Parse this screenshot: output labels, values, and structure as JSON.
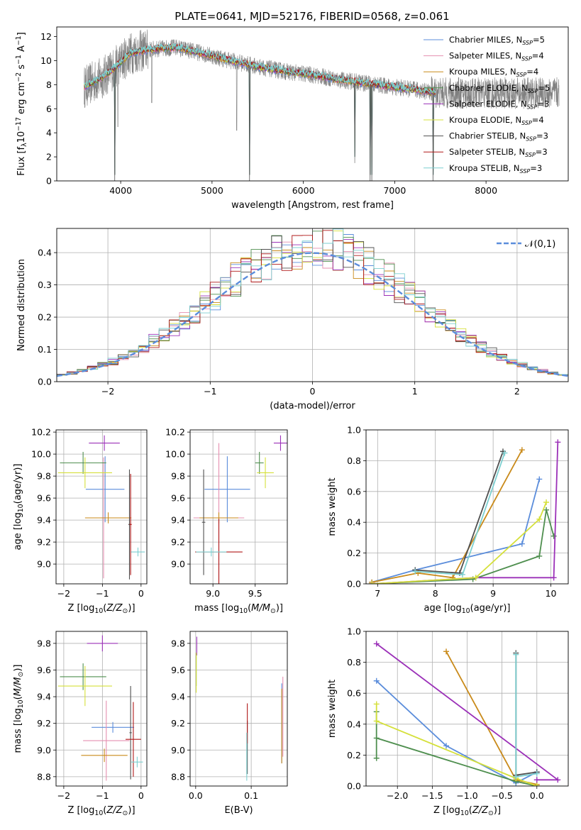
{
  "figure": {
    "title": "PLATE=0641, MJD=52176, FIBERID=0568, z=0.061"
  },
  "models": [
    {
      "name": "Chabrier MILES",
      "nssp": "5",
      "color": "#5b8ddb"
    },
    {
      "name": "Salpeter MILES",
      "nssp": "4",
      "color": "#e58fb0"
    },
    {
      "name": "Kroupa MILES",
      "nssp": "4",
      "color": "#c98a1a"
    },
    {
      "name": "Chabrier ELODIE",
      "nssp": "5",
      "color": "#4f8f4f"
    },
    {
      "name": "Salpeter ELODIE",
      "nssp": "3",
      "color": "#9b30b8"
    },
    {
      "name": "Kroupa ELODIE",
      "nssp": "4",
      "color": "#d5e03a"
    },
    {
      "name": "Chabrier STELIB",
      "nssp": "3",
      "color": "#505050"
    },
    {
      "name": "Salpeter STELIB",
      "nssp": "3",
      "color": "#b01818"
    },
    {
      "name": "Kroupa STELIB",
      "nssp": "3",
      "color": "#7ccfd0"
    }
  ],
  "chart_data": [
    {
      "id": "spectrum",
      "type": "line",
      "xlabel": "wavelength [Angstrom, rest frame]",
      "ylabel": "Flux [f$_\\lambda$10$^{-17}$ erg cm$^{-2}$ s$^{-1}$ A$^{-1}$]",
      "xlim": [
        3300,
        8900
      ],
      "ylim": [
        0,
        12.8
      ],
      "xticks": [
        4000,
        5000,
        6000,
        7000,
        8000
      ],
      "yticks": [
        0,
        2,
        4,
        6,
        8,
        10,
        12
      ],
      "legend_position": "top-right",
      "data_color": "#808080",
      "model_color": "#7ccfd0",
      "continuum": [
        [
          3600,
          7.8
        ],
        [
          3800,
          8.6
        ],
        [
          3950,
          9.5
        ],
        [
          4100,
          10.6
        ],
        [
          4300,
          10.9
        ],
        [
          4600,
          11.1
        ],
        [
          4900,
          10.6
        ],
        [
          5200,
          10.0
        ],
        [
          5500,
          9.5
        ],
        [
          5800,
          9.1
        ],
        [
          6100,
          8.8
        ],
        [
          6400,
          8.4
        ],
        [
          6700,
          8.1
        ],
        [
          7000,
          7.8
        ],
        [
          7300,
          7.5
        ],
        [
          7500,
          7.3
        ]
      ],
      "data_range": [
        3600,
        8800
      ],
      "model_range": [
        3600,
        7450
      ],
      "dips": [
        [
          3934,
          0
        ],
        [
          3969,
          4.5
        ],
        [
          4340,
          6.5
        ],
        [
          5270,
          4.2
        ],
        [
          5410,
          0
        ],
        [
          6563,
          1.5
        ],
        [
          6730,
          0
        ],
        [
          6750,
          0
        ],
        [
          7420,
          0
        ]
      ],
      "noise": 1.2
    },
    {
      "id": "residuals",
      "type": "line",
      "xlabel": "(data-model)/error",
      "ylabel": "Normed distribution",
      "xlim": [
        -2.5,
        2.5
      ],
      "ylim": [
        0,
        0.475
      ],
      "xticks": [
        -2,
        -1,
        0,
        1,
        2
      ],
      "yticks": [
        0.0,
        0.1,
        0.2,
        0.3,
        0.4
      ],
      "xticklabels": [
        "−2",
        "−1",
        "0",
        "1",
        "2"
      ],
      "yticklabels": [
        "0.0",
        "0.1",
        "0.2",
        "0.3",
        "0.4"
      ],
      "grid": true,
      "legend_label": "$\\mathcal{N}(0,1)$",
      "legend_position": "top-right",
      "bins": 50,
      "bin_range": [
        -2.5,
        2.5
      ]
    },
    {
      "id": "age-vs-Z",
      "type": "scatter",
      "xlabel": "Z [log$_{10}$($Z/Z_\\odot$)]",
      "ylabel": "age  [log$_{10}$($age/yr$)]",
      "xlim": [
        -2.2,
        0.15
      ],
      "ylim": [
        8.82,
        10.22
      ],
      "xticks": [
        -2,
        -1,
        0
      ],
      "yticks": [
        9.0,
        9.2,
        9.4,
        9.6,
        9.8,
        10.0,
        10.2
      ],
      "xticklabels": [
        "−2",
        "−1",
        "0"
      ],
      "yticklabels": [
        "9.0",
        "9.2",
        "9.4",
        "9.6",
        "9.8",
        "10.0",
        "10.2"
      ],
      "grid": true,
      "points": [
        {
          "model": 0,
          "x": -0.93,
          "y": 9.68,
          "xerr": 0.5,
          "yerr": 0.3
        },
        {
          "model": 1,
          "x": -0.97,
          "y": 9.42,
          "xerr": 0.05,
          "yerr": 0.55
        },
        {
          "model": 2,
          "x": -0.85,
          "y": 9.42,
          "xerr": 0.6,
          "yerr": 0.05
        },
        {
          "model": 3,
          "x": -1.5,
          "y": 9.92,
          "xerr": 0.6,
          "yerr": 0.1
        },
        {
          "model": 4,
          "x": -0.95,
          "y": 10.1,
          "xerr": 0.4,
          "yerr": 0.07
        },
        {
          "model": 5,
          "x": -1.45,
          "y": 9.83,
          "xerr": 0.7,
          "yerr": 0.14
        },
        {
          "model": 6,
          "x": -0.3,
          "y": 9.36,
          "xerr": 0.03,
          "yerr": 0.5
        },
        {
          "model": 7,
          "x": -0.27,
          "y": 9.36,
          "xerr": 0.03,
          "yerr": 0.46
        },
        {
          "model": 8,
          "x": -0.08,
          "y": 9.11,
          "xerr": 0.18,
          "yerr": 0.04
        }
      ]
    },
    {
      "id": "age-vs-mass",
      "type": "scatter",
      "xlabel": "mass [log$_{10}$($M/M_\\odot$)]",
      "xlim": [
        8.73,
        9.88
      ],
      "ylim": [
        8.82,
        10.22
      ],
      "xticks": [
        9.0,
        9.5
      ],
      "yticks": [
        9.0,
        9.2,
        9.4,
        9.6,
        9.8,
        10.0,
        10.2
      ],
      "xticklabels": [
        "9.0",
        "9.5"
      ],
      "yticklabels": [
        "9.0",
        "9.2",
        "9.4",
        "9.6",
        "9.8",
        "10.0",
        "10.2"
      ],
      "grid": true,
      "points": [
        {
          "model": 0,
          "x": 9.17,
          "y": 9.68,
          "xerr": 0.27,
          "yerr": 0.3
        },
        {
          "model": 1,
          "x": 9.07,
          "y": 9.42,
          "xerr": 0.3,
          "yerr": 0.68
        },
        {
          "model": 2,
          "x": 9.07,
          "y": 9.42,
          "xerr": 0.23,
          "yerr": 0.05
        },
        {
          "model": 3,
          "x": 9.55,
          "y": 9.92,
          "xerr": 0.05,
          "yerr": 0.1
        },
        {
          "model": 4,
          "x": 9.8,
          "y": 10.1,
          "xerr": 0.08,
          "yerr": 0.07
        },
        {
          "model": 5,
          "x": 9.62,
          "y": 9.83,
          "xerr": 0.1,
          "yerr": 0.14
        },
        {
          "model": 6,
          "x": 8.89,
          "y": 9.38,
          "xerr": 0.02,
          "yerr": 0.48
        },
        {
          "model": 7,
          "x": 9.07,
          "y": 9.11,
          "xerr": 0.28,
          "yerr": 0.3
        },
        {
          "model": 8,
          "x": 8.98,
          "y": 9.11,
          "xerr": 0.18,
          "yerr": 0.04
        }
      ]
    },
    {
      "id": "mass-weight-vs-age",
      "type": "line",
      "xlabel": "age  [log$_{10}$($age/yr$)]",
      "ylabel": "mass weight",
      "xlim": [
        6.8,
        10.3
      ],
      "ylim": [
        0,
        1.0
      ],
      "xticks": [
        7,
        8,
        9,
        10
      ],
      "yticks": [
        0.0,
        0.2,
        0.4,
        0.6,
        0.8,
        1.0
      ],
      "xticklabels": [
        "7",
        "8",
        "9",
        "10"
      ],
      "yticklabels": [
        "0.0",
        "0.2",
        "0.4",
        "0.6",
        "0.8",
        "1.0"
      ],
      "grid": true,
      "series": [
        {
          "model": 0,
          "x": [
            6.9,
            7.65,
            9.5,
            9.8
          ],
          "y": [
            0.01,
            0.09,
            0.26,
            0.68
          ]
        },
        {
          "model": 2,
          "x": [
            6.9,
            7.7,
            8.3,
            9.5
          ],
          "y": [
            0.01,
            0.07,
            0.04,
            0.87
          ]
        },
        {
          "model": 3,
          "x": [
            6.9,
            8.65,
            9.8,
            9.92,
            10.05
          ],
          "y": [
            0.0,
            0.03,
            0.18,
            0.48,
            0.31
          ]
        },
        {
          "model": 4,
          "x": [
            6.9,
            8.7,
            10.05,
            10.12
          ],
          "y": [
            0.0,
            0.04,
            0.04,
            0.92
          ]
        },
        {
          "model": 5,
          "x": [
            6.9,
            8.7,
            9.8,
            9.92
          ],
          "y": [
            0.0,
            0.04,
            0.42,
            0.53
          ]
        },
        {
          "model": 6,
          "x": [
            7.65,
            8.42,
            9.17
          ],
          "y": [
            0.09,
            0.07,
            0.86
          ]
        },
        {
          "model": 8,
          "x": [
            7.65,
            8.47,
            9.2
          ],
          "y": [
            0.08,
            0.06,
            0.85
          ]
        }
      ]
    },
    {
      "id": "mass-vs-Z",
      "type": "scatter",
      "xlabel": "Z [log$_{10}$($Z/Z_\\odot$)]",
      "ylabel": "mass [log$_{10}$($M/M_\\odot$)]",
      "xlim": [
        -2.2,
        0.15
      ],
      "ylim": [
        8.73,
        9.89
      ],
      "xticks": [
        -2,
        -1,
        0
      ],
      "yticks": [
        8.8,
        9.0,
        9.2,
        9.4,
        9.6,
        9.8
      ],
      "xticklabels": [
        "−2",
        "−1",
        "0"
      ],
      "yticklabels": [
        "8.8",
        "9.0",
        "9.2",
        "9.4",
        "9.6",
        "9.8"
      ],
      "grid": true,
      "points": [
        {
          "model": 0,
          "x": -0.73,
          "y": 9.17,
          "xerr": 0.55,
          "yerr": 0.04
        },
        {
          "model": 1,
          "x": -0.9,
          "y": 9.07,
          "xerr": 0.6,
          "yerr": 0.3
        },
        {
          "model": 2,
          "x": -0.95,
          "y": 8.96,
          "xerr": 0.6,
          "yerr": 0.05
        },
        {
          "model": 3,
          "x": -1.5,
          "y": 9.55,
          "xerr": 0.6,
          "yerr": 0.1
        },
        {
          "model": 4,
          "x": -1.0,
          "y": 9.8,
          "xerr": 0.4,
          "yerr": 0.06
        },
        {
          "model": 5,
          "x": -1.45,
          "y": 9.48,
          "xerr": 0.7,
          "yerr": 0.15
        },
        {
          "model": 6,
          "x": -0.27,
          "y": 9.13,
          "xerr": 0.03,
          "yerr": 0.35
        },
        {
          "model": 7,
          "x": -0.2,
          "y": 9.08,
          "xerr": 0.2,
          "yerr": 0.28
        },
        {
          "model": 8,
          "x": -0.1,
          "y": 8.91,
          "xerr": 0.15,
          "yerr": 0.04
        }
      ]
    },
    {
      "id": "mass-vs-EBV",
      "type": "scatter",
      "xlabel": "E(B-V)",
      "xlim": [
        -0.01,
        0.165
      ],
      "ylim": [
        8.73,
        9.89
      ],
      "xticks": [
        0.0,
        0.1
      ],
      "yticks": [
        8.8,
        9.0,
        9.2,
        9.4,
        9.6,
        9.8
      ],
      "xticklabels": [
        "0.0",
        "0.1"
      ],
      "yticklabels": [
        "8.8",
        "9.0",
        "9.2",
        "9.4",
        "9.6",
        "9.8"
      ],
      "grid": true,
      "points": [
        {
          "model": 0,
          "x": 0.155,
          "y": 9.2,
          "xerr": 0,
          "yerr": 0.3
        },
        {
          "model": 1,
          "x": 0.157,
          "y": 9.25,
          "xerr": 0,
          "yerr": 0.3
        },
        {
          "model": 2,
          "x": 0.155,
          "y": 9.18,
          "xerr": 0,
          "yerr": 0.28
        },
        {
          "model": 3,
          "x": 0.001,
          "y": 9.6,
          "xerr": 0,
          "yerr": 0.12
        },
        {
          "model": 4,
          "x": 0.002,
          "y": 9.78,
          "xerr": 0,
          "yerr": 0.07
        },
        {
          "model": 5,
          "x": 0.001,
          "y": 9.58,
          "xerr": 0,
          "yerr": 0.15
        },
        {
          "model": 6,
          "x": 0.093,
          "y": 9.02,
          "xerr": 0,
          "yerr": 0.2
        },
        {
          "model": 7,
          "x": 0.093,
          "y": 9.2,
          "xerr": 0,
          "yerr": 0.15
        },
        {
          "model": 8,
          "x": 0.092,
          "y": 8.95,
          "xerr": 0,
          "yerr": 0.18
        }
      ]
    },
    {
      "id": "mass-weight-vs-Z",
      "type": "line",
      "xlabel": "Z [log$_{10}$($Z/Z_\\odot$)]",
      "ylabel": "mass weight",
      "xlim": [
        -2.45,
        0.45
      ],
      "ylim": [
        0,
        1.0
      ],
      "xticks": [
        -2.0,
        -1.5,
        -1.0,
        -0.5,
        0.0
      ],
      "yticks": [
        0.0,
        0.2,
        0.4,
        0.6,
        0.8,
        1.0
      ],
      "xticklabels": [
        "−2.0",
        "−1.5",
        "−1.0",
        "−0.5",
        "0.0"
      ],
      "yticklabels": [
        "0.0",
        "0.2",
        "0.4",
        "0.6",
        "0.8",
        "1.0"
      ],
      "grid": true,
      "series": [
        {
          "model": 0,
          "x": [
            -2.3,
            -1.3,
            -0.3,
            0.0
          ],
          "y": [
            0.68,
            0.26,
            0.02,
            0.09
          ]
        },
        {
          "model": 2,
          "x": [
            -1.3,
            -0.3,
            0.0
          ],
          "y": [
            0.87,
            0.04,
            0.01
          ]
        },
        {
          "model": 3,
          "x": [
            -2.3,
            -2.3,
            -2.3,
            -0.3,
            0.0
          ],
          "y": [
            0.18,
            0.48,
            0.31,
            0.03,
            0.0
          ]
        },
        {
          "model": 4,
          "x": [
            -2.3,
            0.3,
            0.0
          ],
          "y": [
            0.92,
            0.04,
            0.04
          ]
        },
        {
          "model": 5,
          "x": [
            -2.3,
            -2.3,
            -0.3,
            0.0
          ],
          "y": [
            0.53,
            0.42,
            0.05,
            0.0
          ]
        },
        {
          "model": 6,
          "x": [
            -0.3,
            -0.3,
            0.0
          ],
          "y": [
            0.86,
            0.07,
            0.09
          ]
        },
        {
          "model": 8,
          "x": [
            -0.3,
            -0.3,
            0.0
          ],
          "y": [
            0.85,
            0.06,
            0.08
          ]
        }
      ]
    }
  ]
}
